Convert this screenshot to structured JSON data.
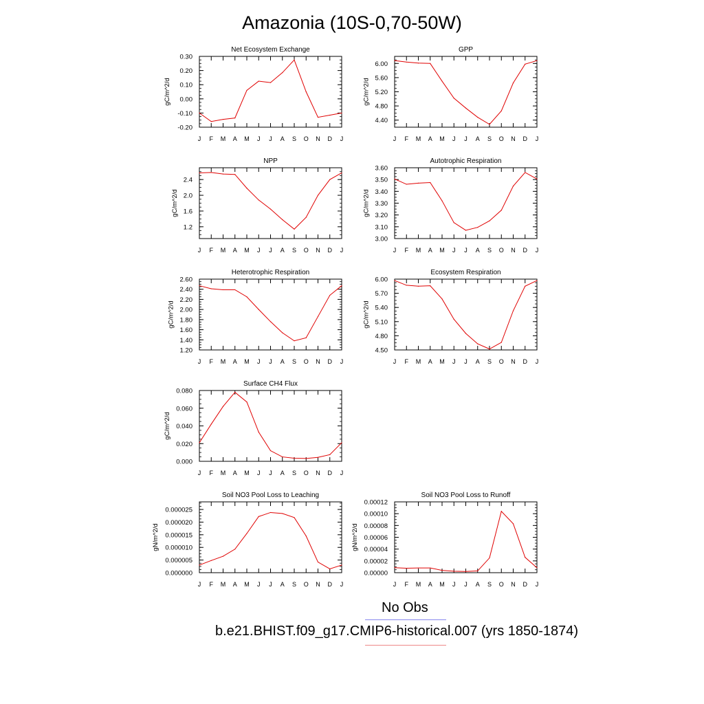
{
  "page": {
    "title": "Amazonia (10S-0,70-50W)"
  },
  "legend": {
    "obs_label": "No Obs",
    "model_label": "b.e21.BHIST.f09_g17.CMIP6-historical.007 (yrs 1850-1874)",
    "obs_color": "#8888ee",
    "model_color": "#ee8888"
  },
  "line_color": "#e00000",
  "chart_data": [
    {
      "type": "line",
      "title": "Net Ecosystem Exchange",
      "ylabel": "gC/m^2/d",
      "xticks": [
        "J",
        "F",
        "M",
        "A",
        "M",
        "J",
        "J",
        "A",
        "S",
        "O",
        "N",
        "D",
        "J"
      ],
      "ylim": [
        -0.2,
        0.3
      ],
      "yticks": [
        "-0.20",
        "-0.10",
        "0.00",
        "0.10",
        "0.20",
        "0.30"
      ],
      "values": [
        -0.1,
        -0.16,
        -0.145,
        -0.135,
        0.06,
        0.125,
        0.115,
        0.185,
        0.275,
        0.05,
        -0.13,
        -0.115,
        -0.1
      ]
    },
    {
      "type": "line",
      "title": "GPP",
      "ylabel": "gC/m^2/d",
      "xticks": [
        "J",
        "F",
        "M",
        "A",
        "M",
        "J",
        "J",
        "A",
        "S",
        "O",
        "N",
        "D",
        "J"
      ],
      "ylim": [
        4.2,
        6.2
      ],
      "yticks": [
        "4.40",
        "4.80",
        "5.20",
        "5.60",
        "6.00"
      ],
      "values": [
        6.08,
        6.04,
        6.01,
        6.0,
        5.5,
        5.02,
        4.74,
        4.48,
        4.28,
        4.66,
        5.45,
        5.98,
        6.08
      ]
    },
    {
      "type": "line",
      "title": "NPP",
      "ylabel": "gC/m^2/d",
      "xticks": [
        "J",
        "F",
        "M",
        "A",
        "M",
        "J",
        "J",
        "A",
        "S",
        "O",
        "N",
        "D",
        "J"
      ],
      "ylim": [
        0.9,
        2.7
      ],
      "yticks": [
        "1.2",
        "1.6",
        "2.0",
        "2.4"
      ],
      "values": [
        2.57,
        2.58,
        2.54,
        2.53,
        2.18,
        1.88,
        1.65,
        1.38,
        1.14,
        1.44,
        2.0,
        2.4,
        2.57
      ]
    },
    {
      "type": "line",
      "title": "Autotrophic Respiration",
      "ylabel": "gC/m^2/d",
      "xticks": [
        "J",
        "F",
        "M",
        "A",
        "M",
        "J",
        "J",
        "A",
        "S",
        "O",
        "N",
        "D",
        "J"
      ],
      "ylim": [
        3.0,
        3.6
      ],
      "yticks": [
        "3.00",
        "3.10",
        "3.20",
        "3.30",
        "3.40",
        "3.50",
        "3.60"
      ],
      "values": [
        3.505,
        3.46,
        3.47,
        3.475,
        3.32,
        3.135,
        3.07,
        3.095,
        3.15,
        3.24,
        3.445,
        3.56,
        3.505
      ]
    },
    {
      "type": "line",
      "title": "Heterotrophic Respiration",
      "ylabel": "gC/m^2/d",
      "xticks": [
        "J",
        "F",
        "M",
        "A",
        "M",
        "J",
        "J",
        "A",
        "S",
        "O",
        "N",
        "D",
        "J"
      ],
      "ylim": [
        1.2,
        2.6
      ],
      "yticks": [
        "1.20",
        "1.40",
        "1.60",
        "1.80",
        "2.00",
        "2.20",
        "2.40",
        "2.60"
      ],
      "values": [
        2.47,
        2.41,
        2.39,
        2.39,
        2.25,
        2.0,
        1.76,
        1.54,
        1.38,
        1.44,
        1.86,
        2.28,
        2.47
      ]
    },
    {
      "type": "line",
      "title": "Ecosystem Respiration",
      "ylabel": "gC/m^2/d",
      "xticks": [
        "J",
        "F",
        "M",
        "A",
        "M",
        "J",
        "J",
        "A",
        "S",
        "O",
        "N",
        "D",
        "J"
      ],
      "ylim": [
        4.5,
        6.0
      ],
      "yticks": [
        "4.50",
        "4.80",
        "5.10",
        "5.40",
        "5.70",
        "6.00"
      ],
      "values": [
        5.97,
        5.87,
        5.85,
        5.86,
        5.58,
        5.15,
        4.85,
        4.63,
        4.52,
        4.66,
        5.33,
        5.85,
        5.97
      ]
    },
    {
      "type": "line",
      "title": "Surface CH4 Flux",
      "ylabel": "gC/m^2/d",
      "xticks": [
        "J",
        "F",
        "M",
        "A",
        "M",
        "J",
        "J",
        "A",
        "S",
        "O",
        "N",
        "D",
        "J"
      ],
      "ylim": [
        0.0,
        0.08
      ],
      "yticks": [
        "0.000",
        "0.020",
        "0.040",
        "0.060",
        "0.080"
      ],
      "values": [
        0.021,
        0.042,
        0.062,
        0.078,
        0.067,
        0.033,
        0.012,
        0.005,
        0.0035,
        0.0032,
        0.0045,
        0.0075,
        0.021
      ]
    },
    {
      "type": "line",
      "title": "Soil NO3 Pool Loss to Leaching",
      "ylabel": "gN/m^2/d",
      "xticks": [
        "J",
        "F",
        "M",
        "A",
        "M",
        "J",
        "J",
        "A",
        "S",
        "O",
        "N",
        "D",
        "J"
      ],
      "ylim": [
        0.0,
        2.8e-05
      ],
      "yticks": [
        "0.000000",
        "0.000005",
        "0.000010",
        "0.000015",
        "0.000020",
        "0.000025"
      ],
      "values": [
        3e-06,
        4.8e-06,
        6.5e-06,
        9.3e-06,
        1.55e-05,
        2.22e-05,
        2.38e-05,
        2.34e-05,
        2.18e-05,
        1.45e-05,
        4.2e-06,
        1.5e-06,
        3e-06
      ]
    },
    {
      "type": "line",
      "title": "Soil NO3 Pool Loss to Runoff",
      "ylabel": "gN/m^2/d",
      "xticks": [
        "J",
        "F",
        "M",
        "A",
        "M",
        "J",
        "J",
        "A",
        "S",
        "O",
        "N",
        "D",
        "J"
      ],
      "ylim": [
        0.0,
        0.00012
      ],
      "yticks": [
        "0.00000",
        "0.00002",
        "0.00004",
        "0.00006",
        "0.00008",
        "0.00010",
        "0.00012"
      ],
      "values": [
        8.5e-06,
        7.5e-06,
        8e-06,
        8e-06,
        4e-06,
        2.5e-06,
        2e-06,
        3e-06,
        2.5e-05,
        0.000104,
        8.3e-05,
        2.6e-05,
        8.5e-06
      ]
    }
  ]
}
